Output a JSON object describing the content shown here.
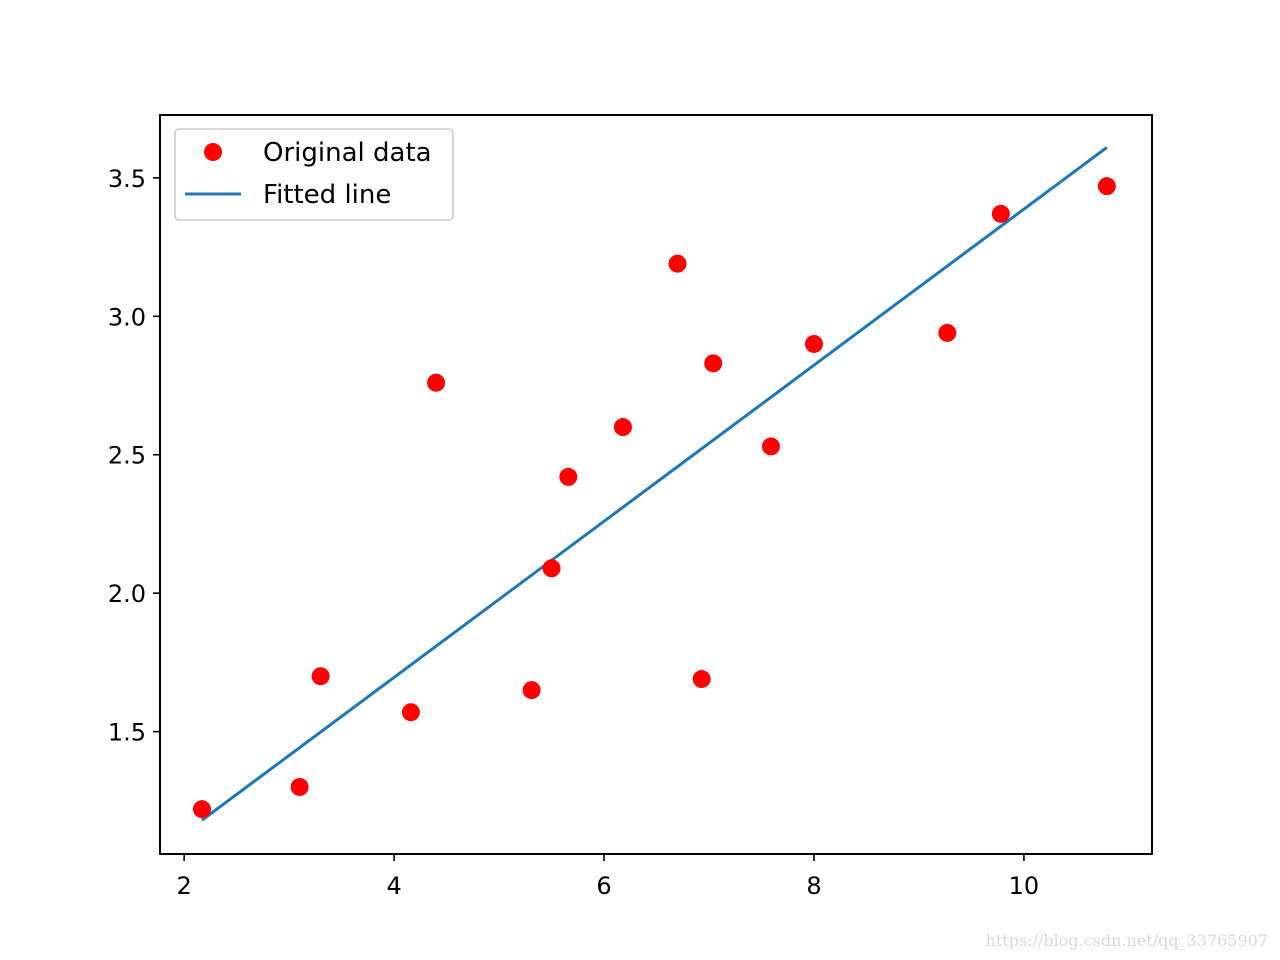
{
  "chart_data": {
    "type": "scatter",
    "title": "",
    "xlabel": "",
    "ylabel": "",
    "xlim": [
      1.77,
      11.22
    ],
    "ylim": [
      1.058,
      3.727
    ],
    "x_ticks": [
      2,
      4,
      6,
      8,
      10
    ],
    "y_ticks": [
      1.5,
      2.0,
      2.5,
      3.0,
      3.5
    ],
    "x_tick_labels": [
      "2",
      "4",
      "6",
      "8",
      "10"
    ],
    "y_tick_labels": [
      "1.5",
      "2.0",
      "2.5",
      "3.0",
      "3.5"
    ],
    "grid": false,
    "legend_position": "top-left",
    "series": [
      {
        "name": "Original data",
        "kind": "scatter",
        "color": "#ff0000",
        "marker": "circle",
        "points": [
          {
            "x": 2.17,
            "y": 1.22
          },
          {
            "x": 3.1,
            "y": 1.3
          },
          {
            "x": 3.3,
            "y": 1.7
          },
          {
            "x": 4.16,
            "y": 1.57
          },
          {
            "x": 4.4,
            "y": 2.76
          },
          {
            "x": 5.31,
            "y": 1.65
          },
          {
            "x": 5.5,
            "y": 2.09
          },
          {
            "x": 5.66,
            "y": 2.42
          },
          {
            "x": 6.18,
            "y": 2.6
          },
          {
            "x": 6.7,
            "y": 3.19
          },
          {
            "x": 6.93,
            "y": 1.69
          },
          {
            "x": 7.04,
            "y": 2.83
          },
          {
            "x": 7.59,
            "y": 2.53
          },
          {
            "x": 8.0,
            "y": 2.9
          },
          {
            "x": 9.27,
            "y": 2.94
          },
          {
            "x": 9.78,
            "y": 3.37
          },
          {
            "x": 10.79,
            "y": 3.47
          }
        ]
      },
      {
        "name": "Fitted line",
        "kind": "line",
        "color": "#1f77b4",
        "points": [
          {
            "x": 2.17,
            "y": 1.18
          },
          {
            "x": 10.79,
            "y": 3.61
          }
        ]
      }
    ]
  },
  "watermark": "https://blog.csdn.net/qq_33765907"
}
